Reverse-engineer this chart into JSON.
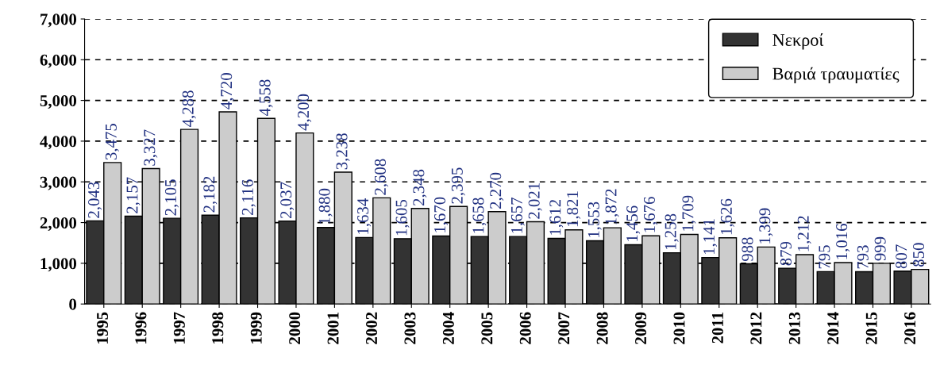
{
  "chart_data": {
    "type": "bar",
    "categories": [
      "1995",
      "1996",
      "1997",
      "1998",
      "1999",
      "2000",
      "2001",
      "2002",
      "2003",
      "2004",
      "2005",
      "2006",
      "2007",
      "2008",
      "2009",
      "2010",
      "2011",
      "2012",
      "2013",
      "2014",
      "2015",
      "2016"
    ],
    "series": [
      {
        "name": "Νεκροί",
        "color": "#333333",
        "values": [
          2043,
          2157,
          2105,
          2182,
          2116,
          2037,
          1880,
          1634,
          1605,
          1670,
          1658,
          1657,
          1612,
          1553,
          1456,
          1258,
          1141,
          988,
          879,
          795,
          793,
          807
        ],
        "value_labels": [
          "2,043",
          "2,157",
          "2,105",
          "2,182",
          "2,116",
          "2,037",
          "1,880",
          "1,634",
          "1,605",
          "1,670",
          "1,658",
          "1,657",
          "1,612",
          "1,553",
          "1,456",
          "1,258",
          "1,141",
          "988",
          "879",
          "795",
          "793",
          "807"
        ]
      },
      {
        "name": "Βαριά τραυματίες",
        "color": "#cccccc",
        "values": [
          3475,
          3327,
          4288,
          4720,
          4558,
          4200,
          3238,
          2608,
          2348,
          2395,
          2270,
          2021,
          1821,
          1872,
          1676,
          1709,
          1626,
          1399,
          1212,
          1016,
          999,
          850
        ],
        "value_labels": [
          "3,475",
          "3,327",
          "4,288",
          "4,720",
          "4,558",
          "4,200",
          "3,238",
          "2,608",
          "2,348",
          "2,395",
          "2,270",
          "2,021",
          "1,821",
          "1,872",
          "1,676",
          "1,709",
          "1,626",
          "1,399",
          "1,212",
          "1,016",
          "999",
          "850"
        ]
      }
    ],
    "ylim": [
      0,
      7000
    ],
    "yticks": [
      {
        "value": 0,
        "label": "0"
      },
      {
        "value": 1000,
        "label": "1,000"
      },
      {
        "value": 2000,
        "label": "2,000"
      },
      {
        "value": 3000,
        "label": "3,000"
      },
      {
        "value": 4000,
        "label": "4,000"
      },
      {
        "value": 5000,
        "label": "5,000"
      },
      {
        "value": 6000,
        "label": "6,000"
      },
      {
        "value": 7000,
        "label": "7,000"
      }
    ],
    "grid": "y",
    "legend": "top right"
  }
}
